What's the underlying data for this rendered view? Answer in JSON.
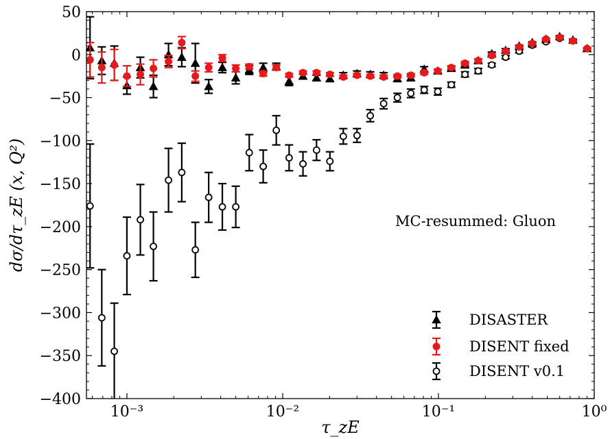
{
  "chart_data": {
    "type": "scatter",
    "x_scale": "log",
    "xlim": [
      0.00055,
      1.0
    ],
    "ylim": [
      -400,
      50
    ],
    "xlabel": "τ_zE",
    "ylabel": "dσ/dτ_zE (x, Q²)",
    "annotation": "MC-resummed: Gluon",
    "legend_position": "lower-right",
    "y_ticks": [
      50,
      0,
      -50,
      -100,
      -150,
      -200,
      -250,
      -300,
      -350,
      -400
    ],
    "y_tick_labels": [
      "50",
      "0",
      "−50",
      "−100",
      "−150",
      "−200",
      "−250",
      "−300",
      "−350",
      "−400"
    ],
    "x_ticks": [
      0.001,
      0.01,
      0.1,
      1
    ],
    "x_tick_labels": [
      "10⁻³",
      "10⁻²",
      "10⁻¹",
      "10⁰"
    ],
    "series": [
      {
        "name": "DISASTER",
        "color": "#000000",
        "marker": "triangle",
        "points": [
          {
            "x": 0.00058,
            "y": 8,
            "err": 36
          },
          {
            "x": 0.00069,
            "y": -7,
            "err": 16
          },
          {
            "x": 0.00083,
            "y": -10,
            "err": 20
          },
          {
            "x": 0.001,
            "y": -36,
            "err": 10
          },
          {
            "x": 0.00122,
            "y": -15,
            "err": 12
          },
          {
            "x": 0.00148,
            "y": -37,
            "err": 13
          },
          {
            "x": 0.00185,
            "y": 0,
            "err": 13
          },
          {
            "x": 0.00225,
            "y": -3,
            "err": 11
          },
          {
            "x": 0.00275,
            "y": -10,
            "err": 23
          },
          {
            "x": 0.00335,
            "y": -37,
            "err": 8
          },
          {
            "x": 0.0041,
            "y": -15,
            "err": 6
          },
          {
            "x": 0.005,
            "y": -27,
            "err": 7
          },
          {
            "x": 0.0061,
            "y": -18,
            "err": 5
          },
          {
            "x": 0.0075,
            "y": -15,
            "err": 5
          },
          {
            "x": 0.0091,
            "y": -14,
            "err": 4
          },
          {
            "x": 0.011,
            "y": -31,
            "err": 5
          },
          {
            "x": 0.0135,
            "y": -25,
            "err": 3
          },
          {
            "x": 0.0165,
            "y": -27,
            "err": 3
          },
          {
            "x": 0.0201,
            "y": -28,
            "err": 3
          },
          {
            "x": 0.0245,
            "y": -24,
            "err": 3
          },
          {
            "x": 0.03,
            "y": -22,
            "err": 3
          },
          {
            "x": 0.0365,
            "y": -23,
            "err": 3
          },
          {
            "x": 0.0445,
            "y": -24,
            "err": 3
          },
          {
            "x": 0.0545,
            "y": -28,
            "err": 3
          },
          {
            "x": 0.0665,
            "y": -27,
            "err": 3
          },
          {
            "x": 0.081,
            "y": -17,
            "err": 3
          },
          {
            "x": 0.099,
            "y": -19,
            "err": 2
          },
          {
            "x": 0.121,
            "y": -16,
            "err": 2
          },
          {
            "x": 0.148,
            "y": -12,
            "err": 2
          },
          {
            "x": 0.18,
            "y": -7,
            "err": 2
          },
          {
            "x": 0.22,
            "y": 1,
            "err": 2
          },
          {
            "x": 0.27,
            "y": 5,
            "err": 2
          },
          {
            "x": 0.33,
            "y": 10,
            "err": 1
          },
          {
            "x": 0.4,
            "y": 14,
            "err": 1
          },
          {
            "x": 0.49,
            "y": 18,
            "err": 1
          },
          {
            "x": 0.6,
            "y": 21,
            "err": 1
          },
          {
            "x": 0.73,
            "y": 17,
            "err": 1
          },
          {
            "x": 0.9,
            "y": 7,
            "err": 1
          }
        ]
      },
      {
        "name": "DISENT fixed",
        "color": "#e41a1c",
        "marker": "circle-filled",
        "points": [
          {
            "x": 0.00058,
            "y": -6,
            "err": 20
          },
          {
            "x": 0.00069,
            "y": -15,
            "err": 18
          },
          {
            "x": 0.00083,
            "y": -12,
            "err": 18
          },
          {
            "x": 0.001,
            "y": -25,
            "err": 12
          },
          {
            "x": 0.00122,
            "y": -23,
            "err": 12
          },
          {
            "x": 0.00148,
            "y": -16,
            "err": 10
          },
          {
            "x": 0.00185,
            "y": -8,
            "err": 7
          },
          {
            "x": 0.00225,
            "y": 14,
            "err": 7
          },
          {
            "x": 0.00275,
            "y": -25,
            "err": 6
          },
          {
            "x": 0.00335,
            "y": -15,
            "err": 5
          },
          {
            "x": 0.0041,
            "y": -4,
            "err": 4
          },
          {
            "x": 0.005,
            "y": -16,
            "err": 4
          },
          {
            "x": 0.0061,
            "y": -14,
            "err": 3
          },
          {
            "x": 0.0075,
            "y": -22,
            "err": 3
          },
          {
            "x": 0.0091,
            "y": -15,
            "err": 3
          },
          {
            "x": 0.011,
            "y": -24,
            "err": 2
          },
          {
            "x": 0.0135,
            "y": -21,
            "err": 2
          },
          {
            "x": 0.0165,
            "y": -21,
            "err": 2
          },
          {
            "x": 0.0201,
            "y": -23,
            "err": 2
          },
          {
            "x": 0.0245,
            "y": -26,
            "err": 2
          },
          {
            "x": 0.03,
            "y": -24,
            "err": 2
          },
          {
            "x": 0.0365,
            "y": -25,
            "err": 2
          },
          {
            "x": 0.0445,
            "y": -26,
            "err": 2
          },
          {
            "x": 0.0545,
            "y": -25,
            "err": 2
          },
          {
            "x": 0.0665,
            "y": -24,
            "err": 2
          },
          {
            "x": 0.081,
            "y": -21,
            "err": 2
          },
          {
            "x": 0.099,
            "y": -19,
            "err": 2
          },
          {
            "x": 0.121,
            "y": -15,
            "err": 2
          },
          {
            "x": 0.148,
            "y": -10,
            "err": 2
          },
          {
            "x": 0.18,
            "y": -7,
            "err": 2
          },
          {
            "x": 0.22,
            "y": -1,
            "err": 2
          },
          {
            "x": 0.27,
            "y": 4,
            "err": 1
          },
          {
            "x": 0.33,
            "y": 9,
            "err": 1
          },
          {
            "x": 0.4,
            "y": 13,
            "err": 1
          },
          {
            "x": 0.49,
            "y": 18,
            "err": 1
          },
          {
            "x": 0.6,
            "y": 20,
            "err": 1
          },
          {
            "x": 0.73,
            "y": 16,
            "err": 1
          },
          {
            "x": 0.9,
            "y": 7,
            "err": 1
          }
        ]
      },
      {
        "name": "DISENT v0.1",
        "color": "#000000",
        "marker": "circle-open",
        "points": [
          {
            "x": 0.00058,
            "y": -176,
            "err": 72
          },
          {
            "x": 0.00069,
            "y": -306,
            "err": 56
          },
          {
            "x": 0.00083,
            "y": -345,
            "err": 56
          },
          {
            "x": 0.001,
            "y": -234,
            "err": 45
          },
          {
            "x": 0.00122,
            "y": -192,
            "err": 41
          },
          {
            "x": 0.00148,
            "y": -223,
            "err": 40
          },
          {
            "x": 0.00185,
            "y": -146,
            "err": 37
          },
          {
            "x": 0.00225,
            "y": -137,
            "err": 34
          },
          {
            "x": 0.00275,
            "y": -227,
            "err": 32
          },
          {
            "x": 0.00335,
            "y": -166,
            "err": 29
          },
          {
            "x": 0.0041,
            "y": -177,
            "err": 27
          },
          {
            "x": 0.005,
            "y": -177,
            "err": 24
          },
          {
            "x": 0.0061,
            "y": -114,
            "err": 21
          },
          {
            "x": 0.0075,
            "y": -130,
            "err": 19
          },
          {
            "x": 0.0091,
            "y": -88,
            "err": 17
          },
          {
            "x": 0.011,
            "y": -120,
            "err": 15
          },
          {
            "x": 0.0135,
            "y": -127,
            "err": 14
          },
          {
            "x": 0.0165,
            "y": -111,
            "err": 12
          },
          {
            "x": 0.0201,
            "y": -124,
            "err": 11
          },
          {
            "x": 0.0245,
            "y": -95,
            "err": 9
          },
          {
            "x": 0.03,
            "y": -94,
            "err": 8
          },
          {
            "x": 0.0365,
            "y": -71,
            "err": 7
          },
          {
            "x": 0.0445,
            "y": -57,
            "err": 6
          },
          {
            "x": 0.0545,
            "y": -50,
            "err": 5
          },
          {
            "x": 0.0665,
            "y": -45,
            "err": 5
          },
          {
            "x": 0.081,
            "y": -41,
            "err": 4
          },
          {
            "x": 0.099,
            "y": -43,
            "err": 4
          },
          {
            "x": 0.121,
            "y": -35,
            "err": 3
          },
          {
            "x": 0.148,
            "y": -23,
            "err": 3
          },
          {
            "x": 0.18,
            "y": -19,
            "err": 3
          },
          {
            "x": 0.22,
            "y": -12,
            "err": 2
          },
          {
            "x": 0.27,
            "y": -3,
            "err": 2
          },
          {
            "x": 0.33,
            "y": 4,
            "err": 2
          },
          {
            "x": 0.4,
            "y": 11,
            "err": 2
          },
          {
            "x": 0.49,
            "y": 15,
            "err": 1
          },
          {
            "x": 0.6,
            "y": 19,
            "err": 1
          },
          {
            "x": 0.73,
            "y": 16,
            "err": 1
          },
          {
            "x": 0.9,
            "y": 7,
            "err": 1
          }
        ]
      }
    ]
  }
}
